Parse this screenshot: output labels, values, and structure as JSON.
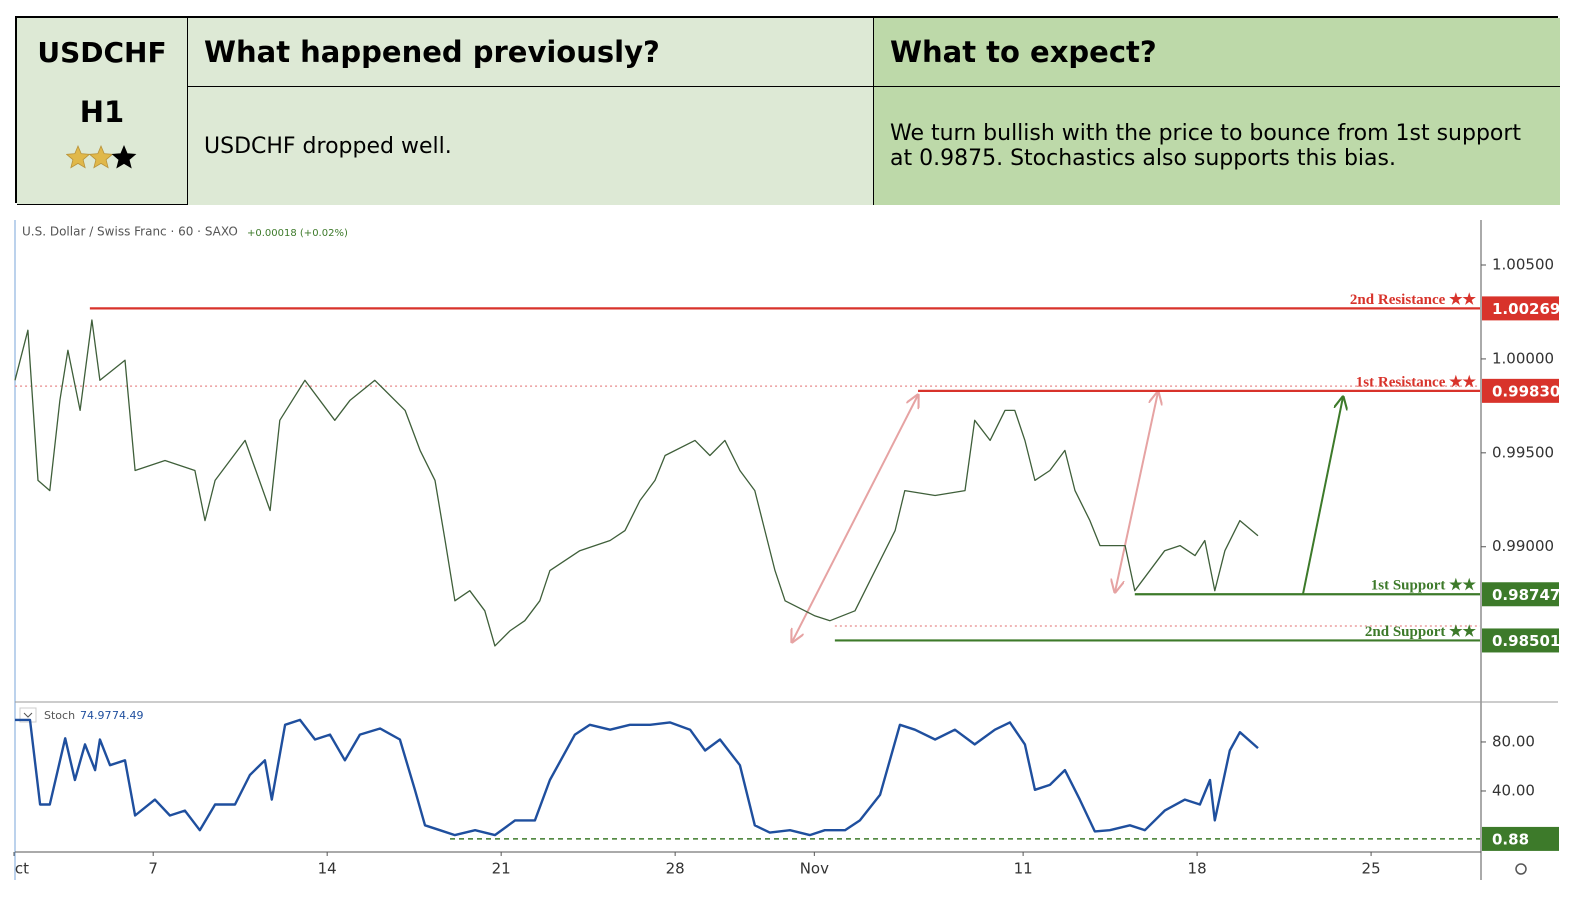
{
  "table": {
    "symbol": "USDCHF",
    "timeframe": "H1",
    "rating": 2,
    "rating_max": 3,
    "headers": [
      "What happened previously?",
      "What to expect?"
    ],
    "cells": [
      "USDCHF dropped well.",
      "We turn bullish with the price to bounce from 1st support at 0.9875. Stochastics also supports this bias."
    ]
  },
  "chart_data": [
    {
      "type": "line",
      "title": "U.S. Dollar / Swiss Franc · 60 · SAXO",
      "change": "+0.00018 (+0.02%)",
      "color": "#3f5f3a",
      "xlim": [
        0,
        42.13
      ],
      "ylim": [
        0.98184,
        1.00729
      ],
      "yticks": [
        {
          "value": 1.005,
          "label": "1.00500"
        },
        {
          "value": 1.0,
          "label": "1.00000"
        },
        {
          "value": 0.995,
          "label": "0.99500"
        },
        {
          "value": 0.99,
          "label": "0.99000"
        }
      ],
      "x": [
        0.03,
        0.4,
        0.69,
        1.03,
        1.32,
        1.55,
        1.9,
        2.24,
        2.47,
        3.19,
        3.48,
        4.34,
        5.2,
        5.49,
        5.78,
        6.64,
        7.36,
        7.64,
        8.36,
        9.22,
        9.66,
        10.37,
        11.24,
        11.67,
        12.1,
        12.39,
        12.67,
        13.1,
        13.53,
        13.82,
        14.25,
        14.68,
        15.11,
        15.4,
        16.26,
        17.13,
        17.56,
        17.99,
        18.42,
        18.71,
        19.57,
        20.0,
        20.43,
        20.86,
        21.29,
        21.58,
        21.87,
        22.16,
        23.02,
        23.45,
        24.17,
        24.6,
        25.32,
        25.6,
        26.47,
        27.33,
        27.61,
        28.05,
        28.48,
        28.76,
        29.05,
        29.34,
        29.77,
        30.2,
        30.49,
        30.92,
        31.21,
        31.93,
        32.21,
        33.07,
        33.51,
        33.94,
        34.22,
        34.51,
        34.8,
        35.23,
        35.75
      ],
      "values": [
        0.99886,
        1.00153,
        0.99353,
        0.99299,
        0.9978,
        1.00046,
        0.99726,
        1.00207,
        0.99886,
        0.99993,
        0.99406,
        0.99459,
        0.99406,
        0.99139,
        0.99353,
        0.99566,
        0.99193,
        0.99673,
        0.99886,
        0.99673,
        0.9978,
        0.99886,
        0.99726,
        0.99513,
        0.99353,
        0.99033,
        0.98712,
        0.98766,
        0.98659,
        0.98472,
        0.98552,
        0.98606,
        0.98712,
        0.98873,
        0.98979,
        0.99033,
        0.99086,
        0.99246,
        0.99353,
        0.99486,
        0.99566,
        0.99486,
        0.99566,
        0.99406,
        0.99299,
        0.99086,
        0.98873,
        0.98712,
        0.98632,
        0.98606,
        0.98659,
        0.98819,
        0.99086,
        0.99299,
        0.99273,
        0.99299,
        0.99673,
        0.99566,
        0.99726,
        0.99726,
        0.99566,
        0.99353,
        0.99406,
        0.99513,
        0.99299,
        0.99139,
        0.99006,
        0.99006,
        0.98766,
        0.98979,
        0.99006,
        0.98953,
        0.99033,
        0.98766,
        0.98979,
        0.99139,
        0.99059
      ],
      "levels": [
        {
          "name": "2nd Resistance ★★",
          "value": 1.00269,
          "value_label": "1.00269",
          "start": 2.18,
          "color": "#d8332b"
        },
        {
          "name": "1st Resistance ★★",
          "value": 0.9983,
          "value_label": "0.99830",
          "start": 25.98,
          "color": "#d8332b"
        },
        {
          "name": "1st Support ★★",
          "value": 0.98747,
          "value_label": "0.98747",
          "start": 32.21,
          "color": "#3d7a2a"
        },
        {
          "name": "2nd Support ★★",
          "value": 0.98501,
          "value_label": "0.98501",
          "start": 23.59,
          "color": "#3d7a2a"
        }
      ],
      "fib_lines": [
        {
          "value": 0.99855,
          "start": 0.03
        },
        {
          "value": 0.98578,
          "start": 23.59
        }
      ]
    },
    {
      "type": "line",
      "name": "Stoch",
      "legend_values": [
        74.97,
        74.49
      ],
      "color": "#1f4f9e",
      "xlim": [
        0,
        42.13
      ],
      "ylim": [
        -9.8,
        111.8
      ],
      "yticks": [
        {
          "value": 80,
          "label": "80.00"
        },
        {
          "value": 40,
          "label": "40.00"
        }
      ],
      "xticks": [
        {
          "value": 0,
          "label": "ct"
        },
        {
          "value": 4,
          "label": "7"
        },
        {
          "value": 9,
          "label": "14"
        },
        {
          "value": 14,
          "label": "21"
        },
        {
          "value": 19,
          "label": "28"
        },
        {
          "value": 23,
          "label": "Nov"
        },
        {
          "value": 29,
          "label": "11"
        },
        {
          "value": 34,
          "label": "18"
        },
        {
          "value": 39,
          "label": "25"
        }
      ],
      "x": [
        0.03,
        0.46,
        0.75,
        1.03,
        1.47,
        1.75,
        2.04,
        2.33,
        2.47,
        2.76,
        3.19,
        3.48,
        4.05,
        4.48,
        4.91,
        5.34,
        5.78,
        6.35,
        6.78,
        7.21,
        7.41,
        7.79,
        8.22,
        8.65,
        9.08,
        9.51,
        9.94,
        10.52,
        11.09,
        11.52,
        11.81,
        12.24,
        12.67,
        13.25,
        13.82,
        14.4,
        14.97,
        15.4,
        16.12,
        16.55,
        17.13,
        17.7,
        18.28,
        18.85,
        19.43,
        19.86,
        20.29,
        20.86,
        21.29,
        21.72,
        22.3,
        22.87,
        23.3,
        23.88,
        24.31,
        24.89,
        25.46,
        25.89,
        26.47,
        27.04,
        27.61,
        28.19,
        28.62,
        29.05,
        29.34,
        29.77,
        30.2,
        30.63,
        31.06,
        31.49,
        32.07,
        32.5,
        33.07,
        33.65,
        34.08,
        34.37,
        34.51,
        34.94,
        35.23,
        35.75
      ],
      "values": [
        98,
        98,
        29,
        29,
        83,
        49,
        78,
        57,
        82,
        61,
        65,
        20,
        33,
        20,
        24,
        8,
        29,
        29,
        53,
        65,
        33,
        94,
        98,
        82,
        86,
        65,
        86,
        91,
        82,
        41,
        12,
        8,
        4,
        8,
        4,
        16,
        16,
        49,
        86,
        94,
        90,
        94,
        94,
        96,
        90,
        73,
        82,
        61,
        12,
        6,
        8,
        4,
        8,
        8,
        16,
        37,
        94,
        90,
        82,
        90,
        78,
        90,
        96,
        78,
        41,
        45,
        57,
        33,
        7,
        8,
        12,
        8,
        24,
        33,
        29,
        49,
        16,
        73,
        88,
        75
      ],
      "levels": [
        {
          "value": 0.88,
          "start": 12.53,
          "color": "#3d7a2a"
        }
      ]
    }
  ]
}
